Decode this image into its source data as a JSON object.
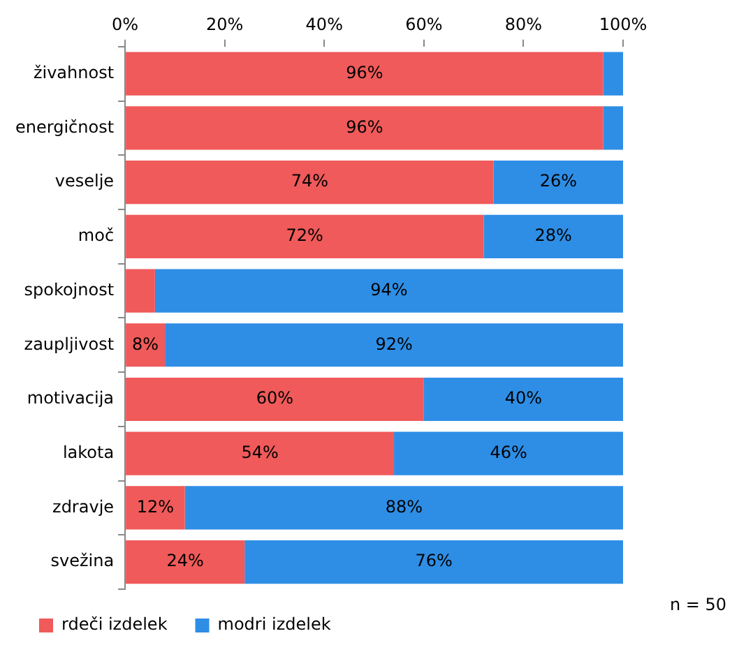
{
  "chart_data": {
    "type": "bar",
    "orientation": "horizontal",
    "stacked": true,
    "categories": [
      "živahnost",
      "energičnost",
      "veselje",
      "moč",
      "spokojnost",
      "zaupljivost",
      "motivacija",
      "lakota",
      "zdravje",
      "svežina"
    ],
    "series": [
      {
        "name": "rdeči izdelek",
        "color": "#f05a5a",
        "values": [
          96,
          96,
          74,
          72,
          6,
          8,
          60,
          54,
          12,
          24
        ],
        "value_labels": [
          "96%",
          "96%",
          "74%",
          "72%",
          null,
          "8%",
          "60%",
          "54%",
          "12%",
          "24%"
        ]
      },
      {
        "name": "modri izdelek",
        "color": "#2e8ee6",
        "values": [
          4,
          4,
          26,
          28,
          94,
          92,
          40,
          46,
          88,
          76
        ],
        "value_labels": [
          null,
          null,
          "26%",
          "28%",
          "94%",
          "92%",
          "40%",
          "46%",
          "88%",
          "76%"
        ]
      }
    ],
    "xlim": [
      0,
      100
    ],
    "xticks": [
      {
        "value": 0,
        "label": "0%"
      },
      {
        "value": 20,
        "label": "20%"
      },
      {
        "value": 40,
        "label": "40%"
      },
      {
        "value": 60,
        "label": "60%"
      },
      {
        "value": 80,
        "label": "80%"
      },
      {
        "value": 100,
        "label": "100%"
      }
    ],
    "grid": false,
    "legend": "bottom left",
    "annotations": [
      "n = 50"
    ]
  }
}
